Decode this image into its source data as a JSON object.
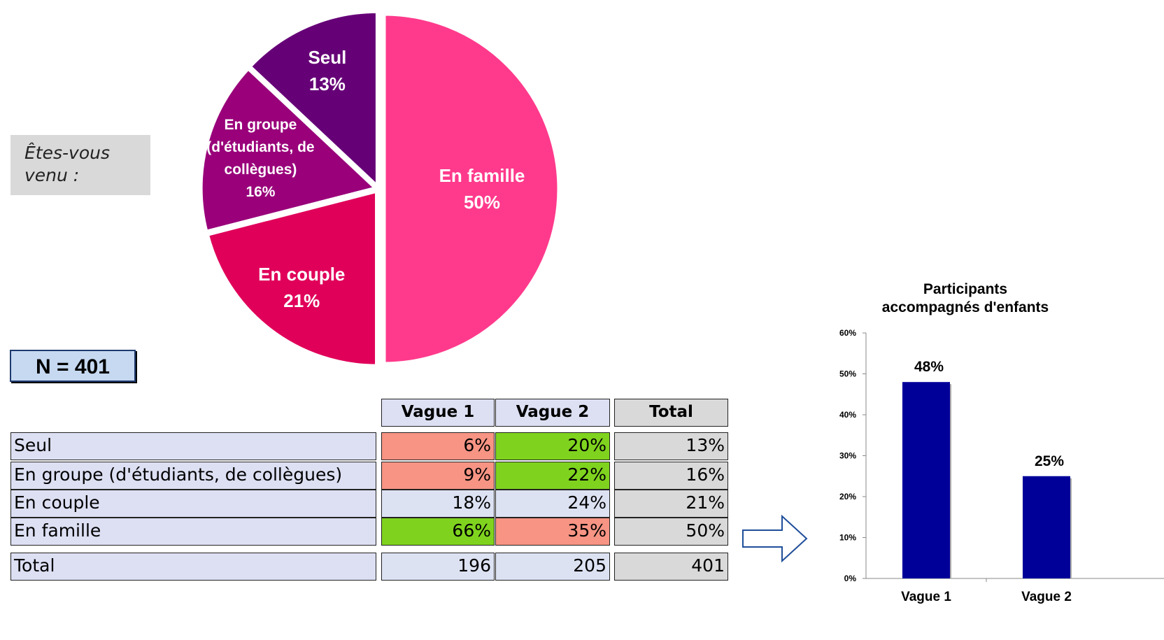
{
  "question": "Êtes-vous venu :",
  "sample": "N = 401",
  "table": {
    "header": [
      "Vague 1",
      "Vague 2",
      "Total"
    ],
    "rows": [
      [
        "Seul",
        "6%",
        "20%",
        "13%"
      ],
      [
        "En groupe (d'étudiants, de collègues)",
        "9%",
        "22%",
        "16%"
      ],
      [
        "En couple",
        "18%",
        "24%",
        "21%"
      ],
      [
        "En famille",
        "66%",
        "35%",
        "50%"
      ]
    ],
    "total": [
      "Total",
      "196",
      "205",
      "401"
    ]
  },
  "chart_data": [
    {
      "type": "pie",
      "categories": [
        "En famille",
        "En couple",
        "En groupe (d'étudiants, de collègues)",
        "Seul"
      ],
      "values": [
        50,
        21,
        16,
        13
      ],
      "value_labels": [
        "50%",
        "21%",
        "16%",
        "13%"
      ],
      "colors": [
        "#ff3a8c",
        "#e0005a",
        "#99007a",
        "#660077"
      ]
    },
    {
      "type": "bar",
      "title": "Participants accompagnés d'enfants",
      "categories": [
        "Vague 1",
        "Vague 2"
      ],
      "values": [
        48,
        25
      ],
      "value_labels": [
        "48%",
        "25%"
      ],
      "color": "#000099",
      "ylim": [
        0,
        60
      ],
      "yticks": [
        {
          "value": 0,
          "label": "0%"
        },
        {
          "value": 10,
          "label": "10%"
        },
        {
          "value": 20,
          "label": "20%"
        },
        {
          "value": 30,
          "label": "30%"
        },
        {
          "value": 40,
          "label": "40%"
        },
        {
          "value": 50,
          "label": "50%"
        },
        {
          "value": 60,
          "label": "60%"
        }
      ]
    }
  ]
}
